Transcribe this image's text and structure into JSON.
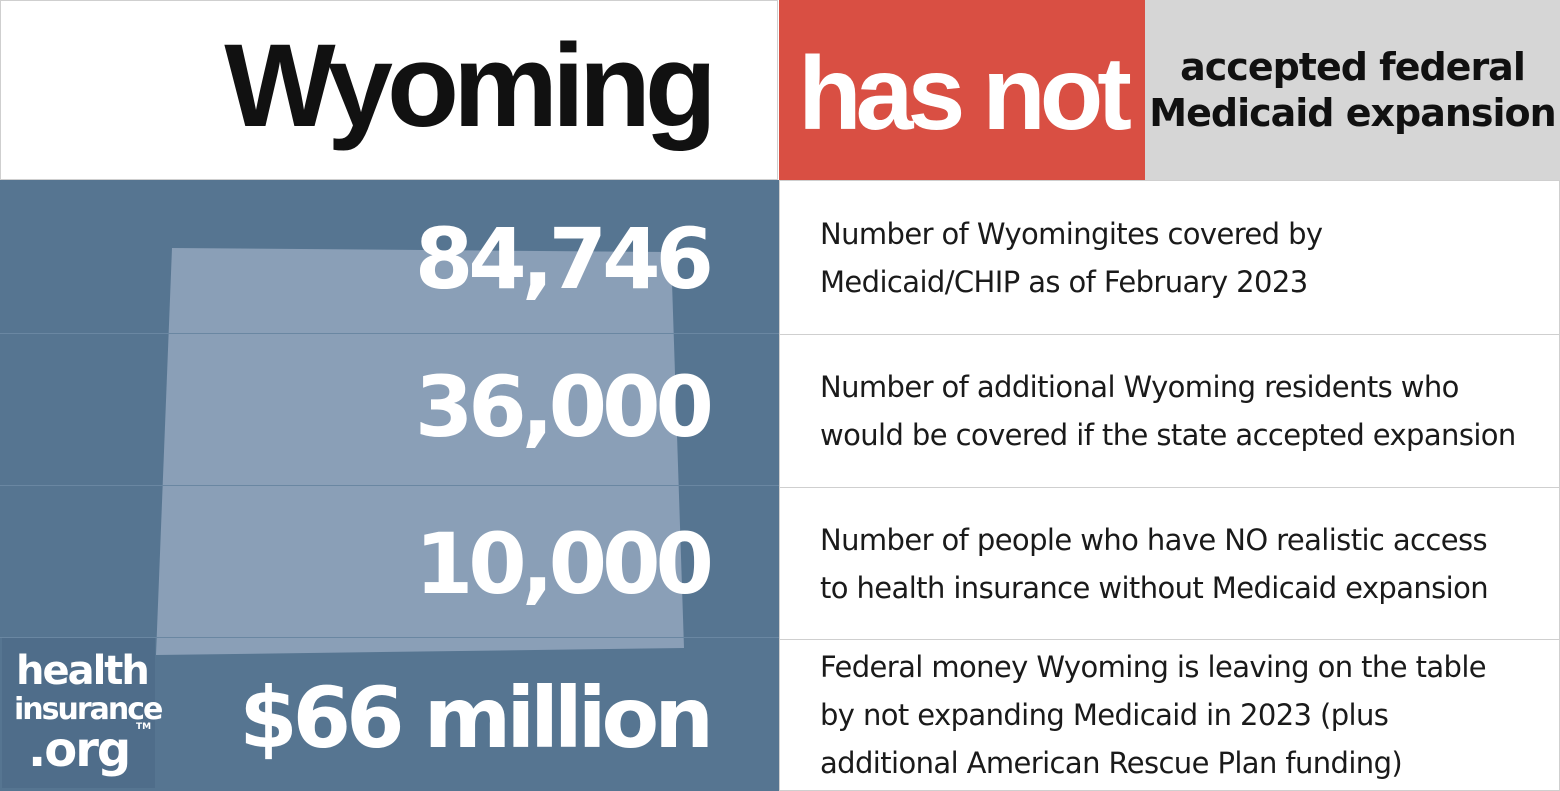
{
  "header": {
    "state": "Wyoming",
    "status": "has not",
    "description_line1": "accepted federal",
    "description_line2": "Medicaid expansion"
  },
  "stats": [
    {
      "value": "84,746",
      "description": "Number of Wyomingites covered by Medicaid/CHIP as of February 2023"
    },
    {
      "value": "36,000",
      "description": "Number of additional Wyoming residents who would be covered if the state accepted expansion"
    },
    {
      "value": "10,000",
      "description": "Number of people who have NO realistic access to health insurance without Medicaid expansion"
    },
    {
      "value": "$66 million",
      "description": "Federal money Wyoming is leaving on the table by not expanding Medicaid in 2023 (plus additional American Rescue Plan funding)"
    }
  ],
  "logo": {
    "line1": "health",
    "line2": "insurance",
    "line3": ".org",
    "tm": "TM"
  },
  "colors": {
    "status_red": "#d94f43",
    "panel_blue": "#567591",
    "state_shape": "#8a9fb7",
    "header_gray": "#d6d6d6"
  }
}
